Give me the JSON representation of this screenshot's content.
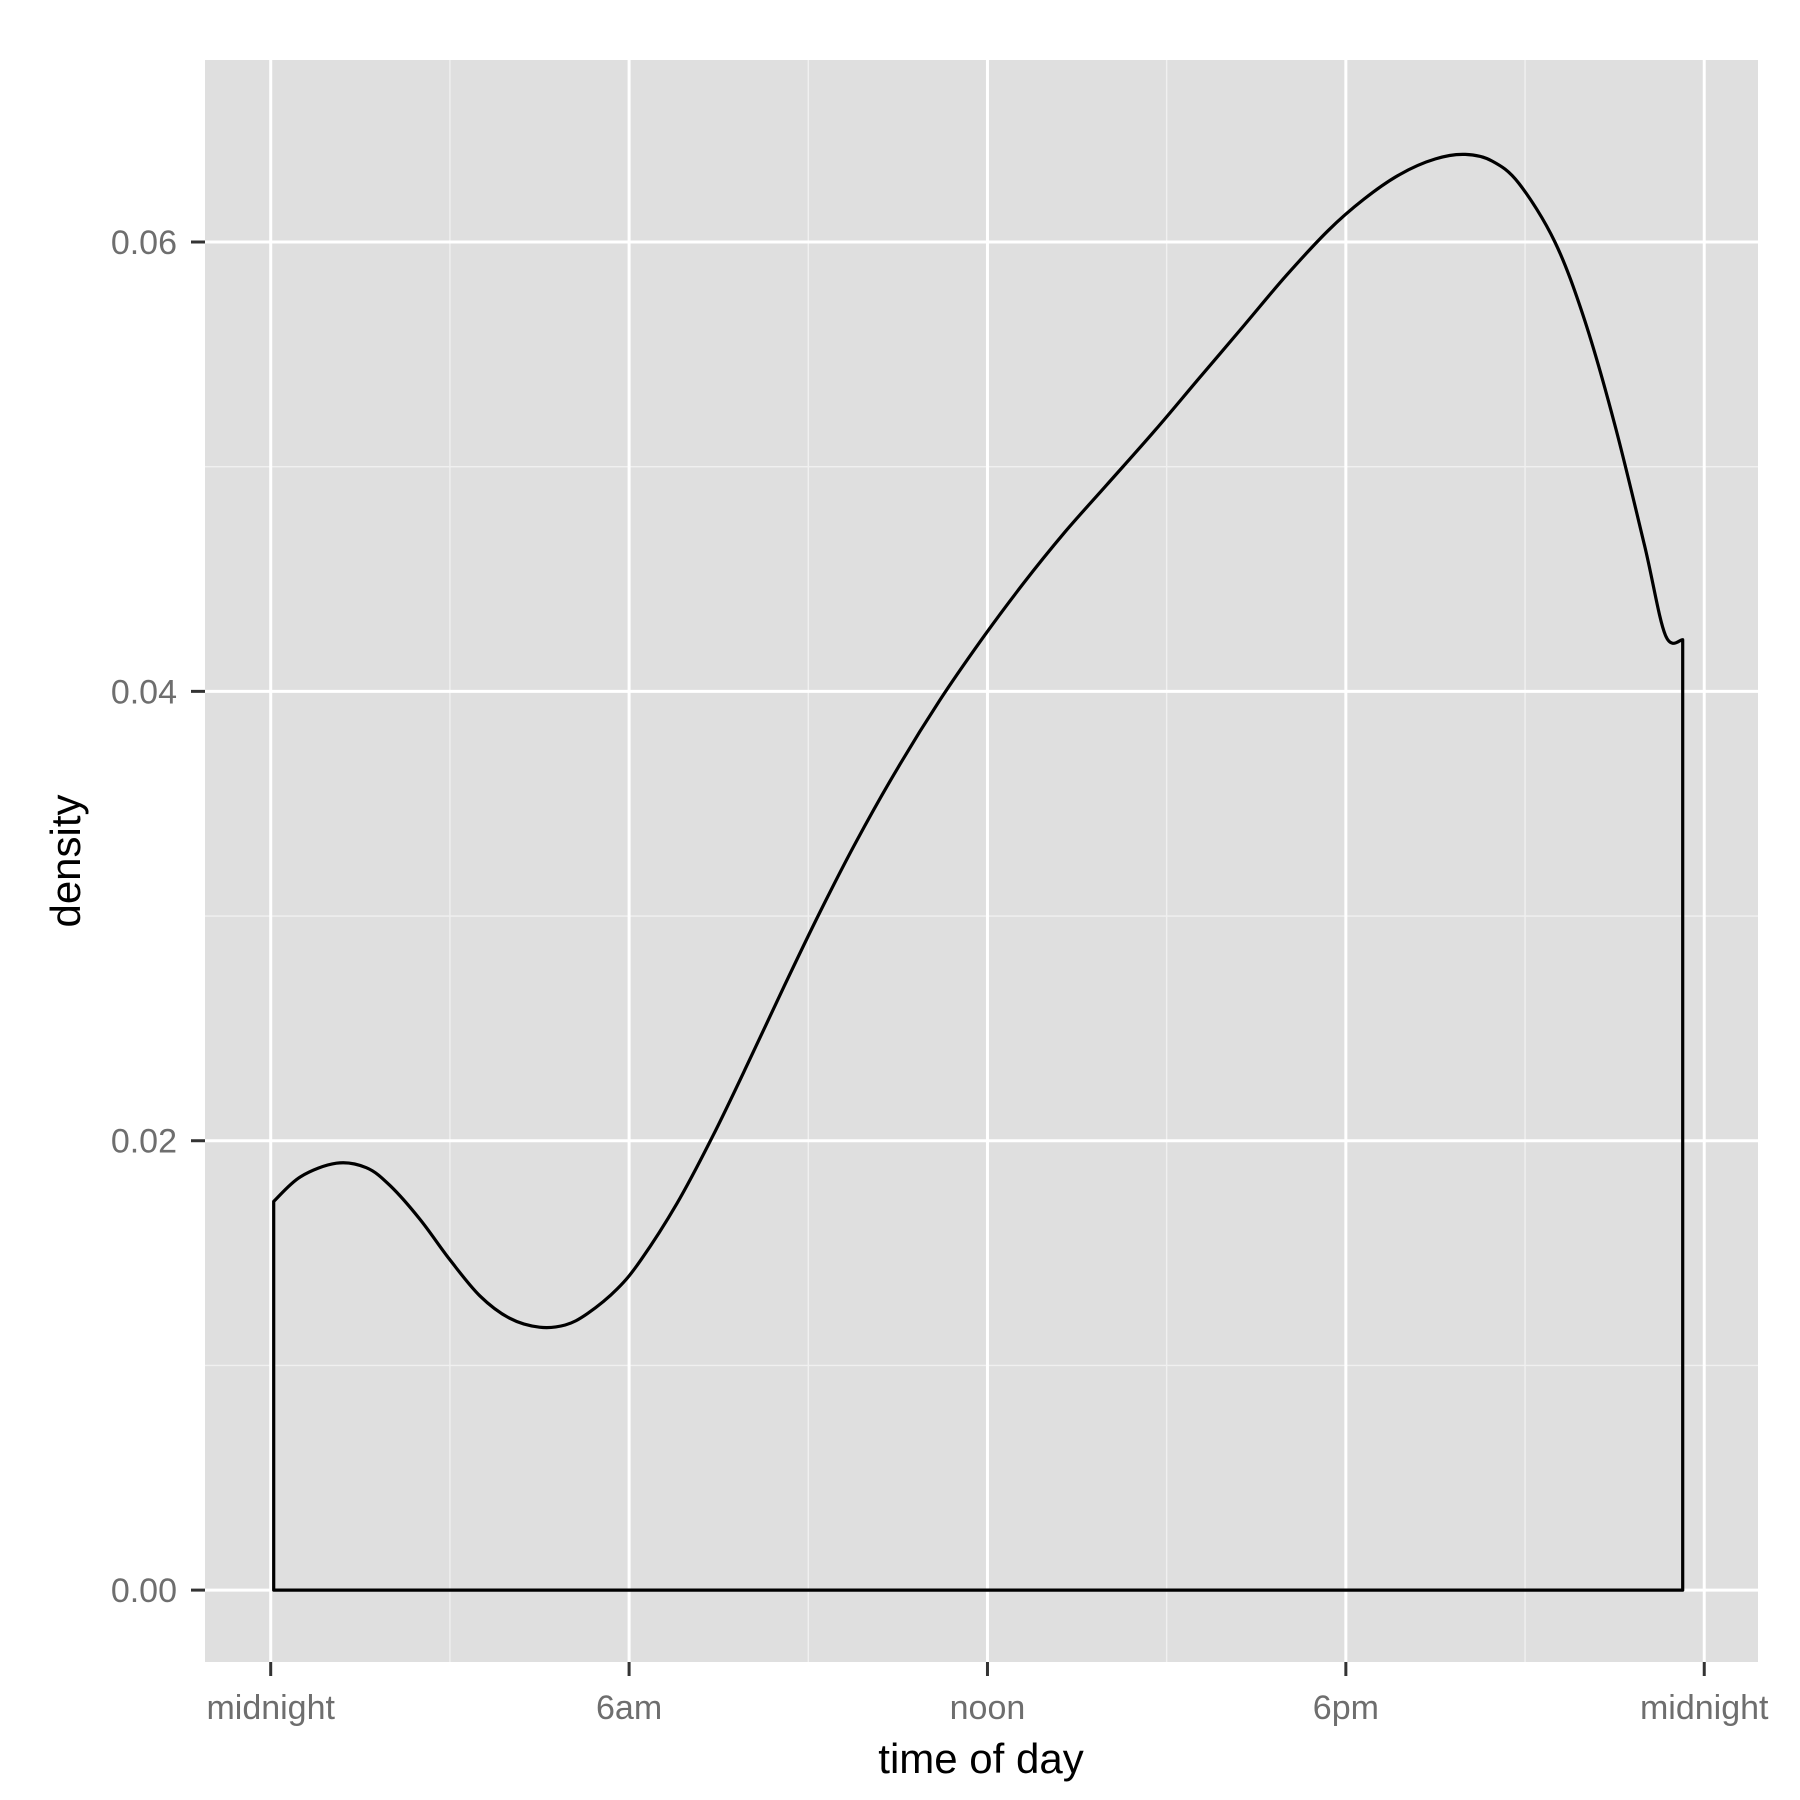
{
  "chart_data": {
    "type": "area",
    "title": "",
    "xlabel": "time of day",
    "ylabel": "density",
    "x_unit": "hours after midnight",
    "xlim": [
      -1.1,
      24.9
    ],
    "ylim": [
      -0.0032,
      0.0681
    ],
    "x_ticks": [
      {
        "value": 0,
        "label": "midnight"
      },
      {
        "value": 6,
        "label": "6am"
      },
      {
        "value": 12,
        "label": "noon"
      },
      {
        "value": 18,
        "label": "6pm"
      },
      {
        "value": 24,
        "label": "midnight"
      }
    ],
    "x_minor_ticks": [
      3,
      9,
      15,
      21
    ],
    "y_ticks": [
      {
        "value": 0.0,
        "label": "0.00"
      },
      {
        "value": 0.02,
        "label": "0.02"
      },
      {
        "value": 0.04,
        "label": "0.04"
      },
      {
        "value": 0.06,
        "label": "0.06"
      }
    ],
    "y_minor_ticks": [
      0.01,
      0.03,
      0.05
    ],
    "grid": true,
    "background": "#dfdfdf",
    "line_color": "#000000",
    "series": [
      {
        "x": [
          0.05,
          0.5,
          1.1,
          1.6,
          2.0,
          2.5,
          3.0,
          3.5,
          4.0,
          4.5,
          4.93,
          5.3,
          5.8,
          6.2,
          6.8,
          7.4,
          8.0,
          8.6,
          9.2,
          9.8,
          10.5,
          11.2,
          11.9,
          12.6,
          13.3,
          14.0,
          14.8,
          15.5,
          16.3,
          17.0,
          17.7,
          18.3,
          18.9,
          19.5,
          20.0,
          20.45,
          20.9,
          21.5,
          22.0,
          22.5,
          23.0,
          23.35,
          23.64
        ],
        "y": [
          0.0173,
          0.0184,
          0.019,
          0.0188,
          0.018,
          0.0165,
          0.0147,
          0.0131,
          0.0121,
          0.0117,
          0.0118,
          0.0123,
          0.0134,
          0.0147,
          0.0172,
          0.0202,
          0.0235,
          0.0269,
          0.0302,
          0.0333,
          0.0366,
          0.0396,
          0.0423,
          0.0448,
          0.0471,
          0.0492,
          0.0516,
          0.0538,
          0.0563,
          0.0585,
          0.0605,
          0.0619,
          0.063,
          0.0637,
          0.0639,
          0.0636,
          0.0626,
          0.06,
          0.0565,
          0.0519,
          0.0465,
          0.0425,
          0.0423
        ]
      }
    ]
  }
}
